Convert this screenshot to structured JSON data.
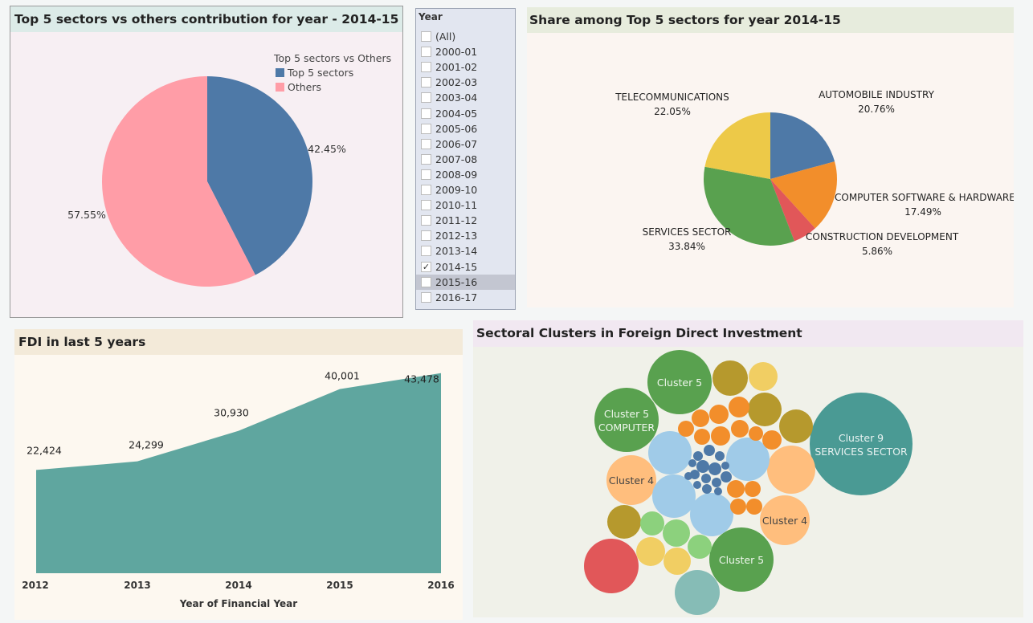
{
  "panel1": {
    "title": "Top 5 sectors vs others contribution for year - 2014-15",
    "legend_title": "Top 5 sectors vs Others",
    "chart_data": {
      "type": "pie",
      "labels": [
        "Top 5 sectors",
        "Others"
      ],
      "values": [
        42.45,
        57.55
      ],
      "value_labels": [
        "42.45%",
        "57.55%"
      ],
      "colors": [
        "#4e79a7",
        "#ff9da7"
      ],
      "legend": "top-right"
    }
  },
  "filter": {
    "title": "Year",
    "items": [
      {
        "label": "(All)",
        "checked": false
      },
      {
        "label": "2000-01",
        "checked": false
      },
      {
        "label": "2001-02",
        "checked": false
      },
      {
        "label": "2002-03",
        "checked": false
      },
      {
        "label": "2003-04",
        "checked": false
      },
      {
        "label": "2004-05",
        "checked": false
      },
      {
        "label": "2005-06",
        "checked": false
      },
      {
        "label": "2006-07",
        "checked": false
      },
      {
        "label": "2007-08",
        "checked": false
      },
      {
        "label": "2008-09",
        "checked": false
      },
      {
        "label": "2009-10",
        "checked": false
      },
      {
        "label": "2010-11",
        "checked": false
      },
      {
        "label": "2011-12",
        "checked": false
      },
      {
        "label": "2012-13",
        "checked": false
      },
      {
        "label": "2013-14",
        "checked": false
      },
      {
        "label": "2014-15",
        "checked": true
      },
      {
        "label": "2015-16",
        "checked": false,
        "highlighted": true
      },
      {
        "label": "2016-17",
        "checked": false
      }
    ],
    "check_glyph": "✓"
  },
  "panel2": {
    "title": "Share among Top 5 sectors for year 2014-15",
    "chart_data": {
      "type": "pie",
      "labels": [
        "AUTOMOBILE INDUSTRY",
        "COMPUTER SOFTWARE & HARDWARE",
        "CONSTRUCTION DEVELOPMENT",
        "SERVICES SECTOR",
        "TELECOMMUNICATIONS"
      ],
      "values": [
        20.76,
        17.49,
        5.86,
        33.84,
        22.05
      ],
      "value_labels": [
        "20.76%",
        "17.49%",
        "5.86%",
        "33.84%",
        "22.05%"
      ],
      "colors": [
        "#4e79a7",
        "#f28e2b",
        "#e15759",
        "#59a14f",
        "#edc948"
      ]
    }
  },
  "panel3": {
    "title": "FDI in last 5 years",
    "chart_data": {
      "type": "area",
      "x": [
        "2012",
        "2013",
        "2014",
        "2015",
        "2016"
      ],
      "values": [
        22424,
        24299,
        30930,
        40001,
        43478
      ],
      "value_labels": [
        "22,424",
        "24,299",
        "30,930",
        "40,001",
        "43,478"
      ],
      "xlabel": "Year of Financial Year",
      "ylabel": "",
      "ylim": [
        0,
        45000
      ],
      "color": "#5fa69f"
    }
  },
  "panel4": {
    "title": "Sectoral Clusters in Foreign Direct Investment",
    "labels": {
      "c5_top": "Cluster 5",
      "c5_computer_1": "Cluster 5",
      "c5_computer_2": "COMPUTER",
      "c9_1": "Cluster 9",
      "c9_2": "SERVICES SECTOR",
      "c4_left": "Cluster 4",
      "c4_right": "Cluster 4",
      "c5_bottom": "Cluster 5"
    }
  }
}
